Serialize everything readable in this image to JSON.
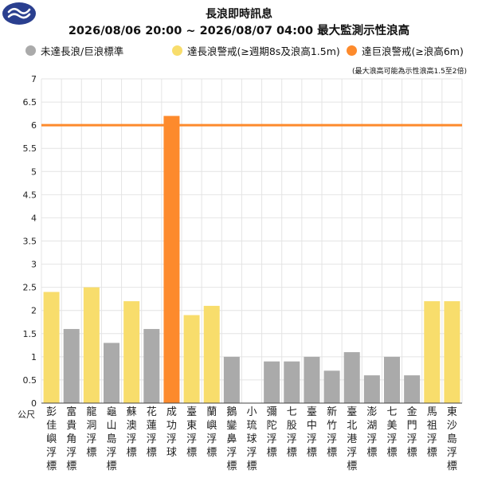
{
  "header": {
    "title": "長浪即時訊息",
    "subtitle": "2026/08/06 20:00 ~ 2026/08/07 04:00 最大監測示性浪高"
  },
  "legend": [
    {
      "label": "未達長浪/巨浪標準",
      "color": "#aaaaaa"
    },
    {
      "label": "達長浪警戒(≥週期8s及浪高1.5m)",
      "color": "#f8dd6c"
    },
    {
      "label": "達巨浪警戒(≥浪高6m)",
      "color": "#fd8a2c"
    }
  ],
  "note": "(最大浪高可能為示性浪高1.5至2倍)",
  "logo": {
    "icon": "cwa-logo-icon",
    "color": "#2a3f8f"
  },
  "chart_data": {
    "type": "bar",
    "ylabel": "公尺",
    "ylim": [
      0,
      7
    ],
    "yticks": [
      "0",
      "0.5",
      "1",
      "1.5",
      "2",
      "2.5",
      "3",
      "3.5",
      "4",
      "4.5",
      "5",
      "5.5",
      "6",
      "6.5",
      "7"
    ],
    "grid": true,
    "threshold": {
      "value": 6,
      "color": "#fd8a2c"
    },
    "colors": {
      "gray": "#aaaaaa",
      "yellow": "#f8dd6c",
      "orange": "#fd8a2c"
    },
    "categories": [
      "彭佳嶼浮標",
      "富貴角浮標",
      "龍洞浮標",
      "龜山島浮標",
      "蘇澳浮標",
      "花蓮浮標",
      "成功浮球",
      "臺東浮標",
      "蘭嶼浮標",
      "鵝鑾鼻浮標",
      "小琉球浮標",
      "彌陀浮標",
      "七股浮標",
      "臺中浮標",
      "新竹浮標",
      "臺北港浮標",
      "澎湖浮標",
      "七美浮標",
      "金門浮標",
      "馬祖浮標",
      "東沙島浮標"
    ],
    "values": [
      2.4,
      1.6,
      2.5,
      1.3,
      2.2,
      1.6,
      6.2,
      1.9,
      2.1,
      1.0,
      null,
      0.9,
      0.9,
      1.0,
      0.7,
      1.1,
      0.6,
      1.0,
      0.6,
      2.2,
      2.2
    ],
    "status": [
      "yellow",
      "gray",
      "yellow",
      "gray",
      "yellow",
      "gray",
      "orange",
      "yellow",
      "yellow",
      "gray",
      "none",
      "gray",
      "gray",
      "gray",
      "gray",
      "gray",
      "gray",
      "gray",
      "gray",
      "yellow",
      "yellow"
    ]
  }
}
